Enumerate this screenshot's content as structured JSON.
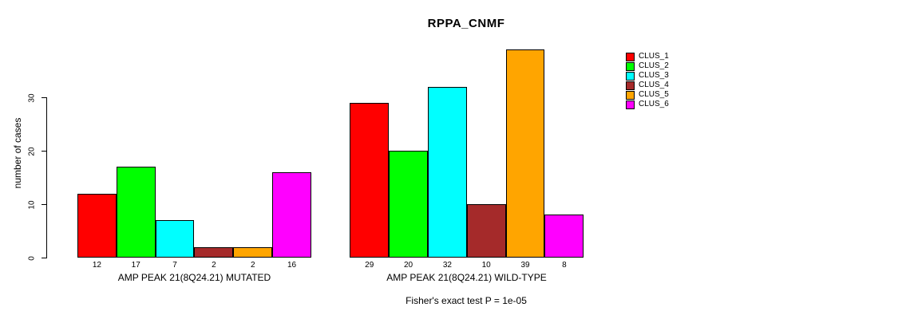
{
  "chart_data": {
    "type": "bar",
    "title": "RPPA_CNMF",
    "ylabel": "number of cases",
    "annotation": "Fisher's exact test P = 1e-05",
    "yticks": [
      0,
      10,
      20,
      30
    ],
    "ylim": [
      0,
      39
    ],
    "grid": false,
    "legend_position": "right",
    "series": [
      "CLUS_1",
      "CLUS_2",
      "CLUS_3",
      "CLUS_4",
      "CLUS_5",
      "CLUS_6"
    ],
    "series_colors": [
      "#FF0000",
      "#00FF00",
      "#00FFFF",
      "#A52A2A",
      "#FFA500",
      "#FF00FF"
    ],
    "groups": [
      {
        "label": "AMP PEAK 21(8Q24.21) MUTATED",
        "values": [
          12,
          17,
          7,
          2,
          2,
          16
        ]
      },
      {
        "label": "AMP PEAK 21(8Q24.21) WILD-TYPE",
        "values": [
          29,
          20,
          32,
          10,
          39,
          8
        ]
      }
    ],
    "colors": {
      "background": "#FFFFFF",
      "axis": "#000000",
      "bar_border": "#000000",
      "text": "#000000"
    }
  }
}
